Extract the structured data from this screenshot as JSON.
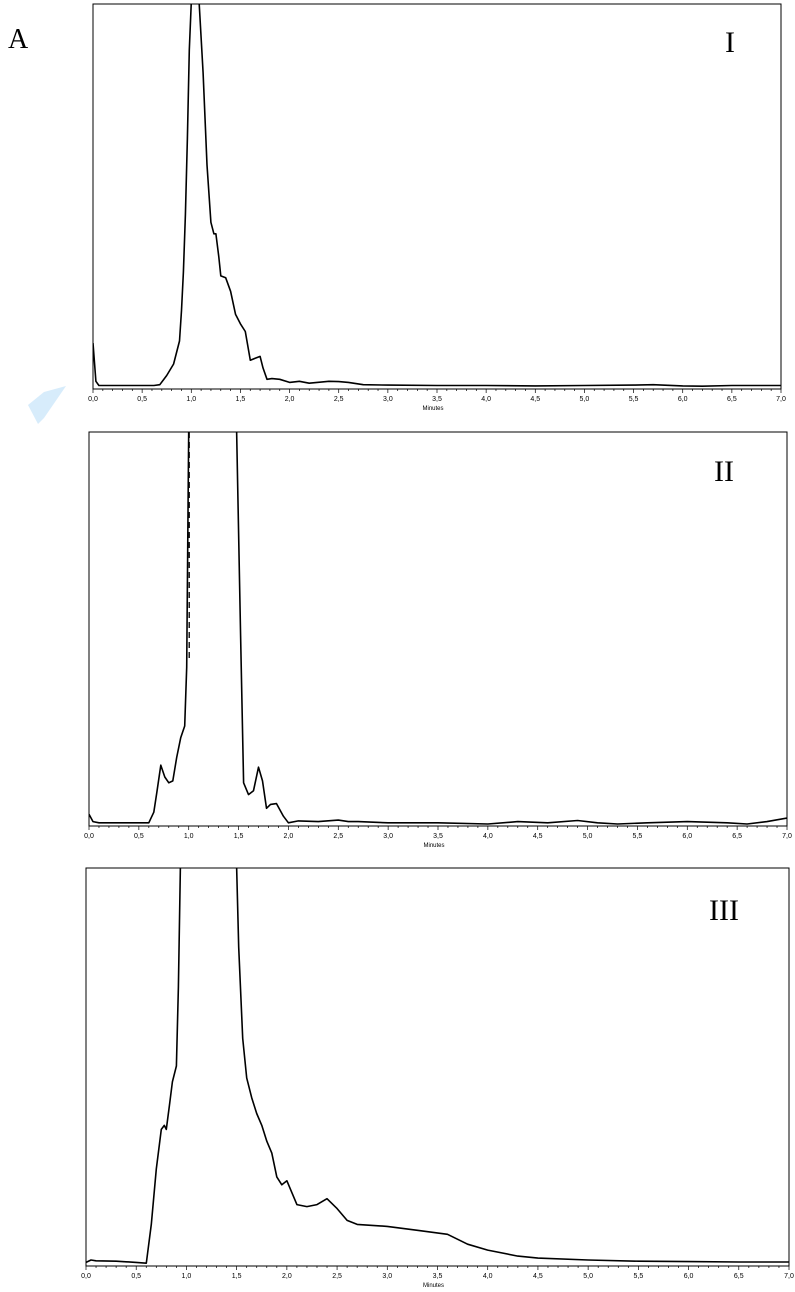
{
  "figure": {
    "panel_label": "A"
  },
  "chart_data": [
    {
      "type": "line",
      "panel": "I",
      "xlabel": "Minutes",
      "ylabel": "",
      "xlim": [
        0.0,
        7.0
      ],
      "ylim": [
        0,
        100
      ],
      "x_ticks": [
        "0,0",
        "0,5",
        "1,0",
        "1,5",
        "2,0",
        "2,5",
        "3,0",
        "3,5",
        "4,0",
        "4,5",
        "5,0",
        "5,5",
        "6,0",
        "6,5",
        "7,0"
      ],
      "grid": false,
      "dashed_marker": null,
      "series": [
        {
          "x": [
            0.0,
            0.03,
            0.06,
            0.1,
            0.3,
            0.55,
            0.62,
            0.68,
            0.75,
            0.82,
            0.88,
            0.9,
            0.92,
            0.94,
            0.96,
            0.98,
            1.0,
            1.02,
            1.08,
            1.12,
            1.16,
            1.2,
            1.23,
            1.25,
            1.28,
            1.3,
            1.35,
            1.4,
            1.45,
            1.5,
            1.55,
            1.58,
            1.6,
            1.65,
            1.7,
            1.73,
            1.77,
            1.82,
            1.9,
            2.0,
            2.1,
            2.2,
            2.4,
            2.5,
            2.6,
            2.75,
            3.0,
            3.5,
            4.0,
            4.5,
            5.0,
            5.5,
            5.7,
            6.0,
            6.2,
            6.5,
            7.0
          ],
          "y": [
            11.5,
            1.5,
            0.4,
            0.4,
            0.4,
            0.4,
            0.4,
            0.6,
            3.0,
            6.0,
            12.0,
            20.0,
            30.0,
            45.0,
            65.0,
            88.0,
            100.0,
            100.0,
            100.0,
            82.0,
            58.0,
            43.0,
            40.0,
            40.0,
            34.0,
            29.0,
            28.5,
            25.0,
            19.0,
            16.5,
            14.5,
            10.0,
            7.0,
            7.5,
            8.0,
            5.0,
            2.0,
            2.2,
            2.0,
            1.2,
            1.5,
            1.0,
            1.5,
            1.4,
            1.2,
            0.6,
            0.5,
            0.4,
            0.4,
            0.3,
            0.4,
            0.5,
            0.6,
            0.3,
            0.2,
            0.4,
            0.4
          ]
        }
      ]
    },
    {
      "type": "line",
      "panel": "II",
      "xlabel": "Minutes",
      "ylabel": "",
      "xlim": [
        0.0,
        7.0
      ],
      "ylim": [
        0,
        100
      ],
      "x_ticks": [
        "0,0",
        "0,5",
        "1,0",
        "1,5",
        "2,0",
        "2,5",
        "3,0",
        "3,5",
        "4,0",
        "4,5",
        "5,0",
        "5,5",
        "6,0",
        "6,5",
        "7,0"
      ],
      "grid": false,
      "dashed_marker": 1.0,
      "series": [
        {
          "x": [
            0.0,
            0.04,
            0.1,
            0.3,
            0.5,
            0.6,
            0.65,
            0.68,
            0.72,
            0.76,
            0.8,
            0.84,
            0.88,
            0.92,
            0.96,
            0.98,
            1.0,
            1.45,
            1.48,
            1.52,
            1.55,
            1.6,
            1.65,
            1.7,
            1.74,
            1.78,
            1.82,
            1.88,
            1.95,
            2.0,
            2.1,
            2.3,
            2.5,
            2.6,
            2.7,
            3.0,
            3.5,
            4.0,
            4.3,
            4.6,
            4.9,
            5.1,
            5.3,
            5.6,
            6.0,
            6.4,
            6.6,
            6.8,
            7.0
          ],
          "y": [
            2.5,
            0.6,
            0.3,
            0.3,
            0.3,
            0.3,
            3.0,
            8.0,
            15.0,
            12.0,
            10.5,
            11.0,
            17.0,
            22.0,
            25.0,
            40.0,
            100.0,
            100.0,
            100.0,
            48.0,
            10.5,
            7.5,
            8.5,
            14.5,
            11.0,
            4.0,
            5.0,
            5.2,
            2.0,
            0.3,
            0.8,
            0.6,
            1.0,
            0.6,
            0.6,
            0.3,
            0.3,
            0.0,
            0.6,
            0.3,
            0.9,
            0.3,
            0.0,
            0.3,
            0.6,
            0.3,
            0.0,
            0.6,
            1.5
          ]
        }
      ]
    },
    {
      "type": "line",
      "panel": "III",
      "xlabel": "Minutes",
      "ylabel": "",
      "xlim": [
        0.0,
        7.0
      ],
      "ylim": [
        0,
        100
      ],
      "x_ticks": [
        "0,0",
        "0,5",
        "1,0",
        "1,5",
        "2,0",
        "2,5",
        "3,0",
        "3,5",
        "4,0",
        "4,5",
        "5,0",
        "5,5",
        "6,0",
        "6,5",
        "7,0"
      ],
      "grid": false,
      "dashed_marker": null,
      "series": [
        {
          "x": [
            0.0,
            0.05,
            0.1,
            0.3,
            0.5,
            0.6,
            0.65,
            0.7,
            0.75,
            0.78,
            0.8,
            0.83,
            0.86,
            0.9,
            0.92,
            0.94,
            1.5,
            1.52,
            1.56,
            1.6,
            1.65,
            1.7,
            1.75,
            1.8,
            1.85,
            1.9,
            1.95,
            2.0,
            2.05,
            2.1,
            2.2,
            2.3,
            2.4,
            2.5,
            2.6,
            2.7,
            3.0,
            3.3,
            3.6,
            3.8,
            4.0,
            4.3,
            4.5,
            5.0,
            5.5,
            6.0,
            6.5,
            7.0
          ],
          "y": [
            0.4,
            1.0,
            0.8,
            0.7,
            0.4,
            0.2,
            10.0,
            24.0,
            34.0,
            35.0,
            34.0,
            40.0,
            46.0,
            50.0,
            70.0,
            100.0,
            100.0,
            80.0,
            57.0,
            47.0,
            42.0,
            38.0,
            35.0,
            31.0,
            28.0,
            22.0,
            20.0,
            21.0,
            18.0,
            15.0,
            14.5,
            15.0,
            16.5,
            14.0,
            11.0,
            10.0,
            9.5,
            8.5,
            7.5,
            5.0,
            3.5,
            2.0,
            1.5,
            1.0,
            0.7,
            0.6,
            0.5,
            0.5
          ]
        }
      ]
    }
  ]
}
